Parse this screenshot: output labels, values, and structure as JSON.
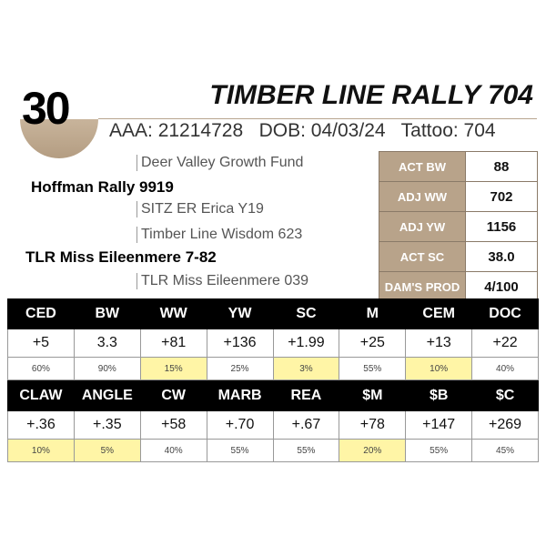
{
  "lot": "30",
  "title": "TIMBER LINE RALLY 704",
  "ids": "AAA: 21214728   DOB: 04/03/24   Tattoo: 704",
  "pedigree": {
    "sire_sire": "Deer Valley Growth Fund",
    "sire": "Hoffman Rally 9919",
    "sire_dam": "SITZ ER Erica Y19",
    "dam_sire": "Timber Line Wisdom 623",
    "dam": "TLR Miss Eileenmere 7-82",
    "dam_dam": "TLR Miss Eileenmere 039"
  },
  "performance": [
    {
      "label": "ACT BW",
      "value": "88"
    },
    {
      "label": "ADJ WW",
      "value": "702"
    },
    {
      "label": "ADJ YW",
      "value": "1156"
    },
    {
      "label": "ACT SC",
      "value": "38.0"
    },
    {
      "label": "DAM'S PROD",
      "value": "4/100"
    }
  ],
  "highlight_color": "#fff5a6",
  "epd1": [
    {
      "h": "CED",
      "v": "+5",
      "p": "60%",
      "hl": false
    },
    {
      "h": "BW",
      "v": "3.3",
      "p": "90%",
      "hl": false
    },
    {
      "h": "WW",
      "v": "+81",
      "p": "15%",
      "hl": true
    },
    {
      "h": "YW",
      "v": "+136",
      "p": "25%",
      "hl": false
    },
    {
      "h": "SC",
      "v": "+1.99",
      "p": "3%",
      "hl": true
    },
    {
      "h": "M",
      "v": "+25",
      "p": "55%",
      "hl": false
    },
    {
      "h": "CEM",
      "v": "+13",
      "p": "10%",
      "hl": true
    },
    {
      "h": "DOC",
      "v": "+22",
      "p": "40%",
      "hl": false
    }
  ],
  "epd2": [
    {
      "h": "CLAW",
      "v": "+.36",
      "p": "10%",
      "hl": true
    },
    {
      "h": "ANGLE",
      "v": "+.35",
      "p": "5%",
      "hl": true
    },
    {
      "h": "CW",
      "v": "+58",
      "p": "40%",
      "hl": false
    },
    {
      "h": "MARB",
      "v": "+.70",
      "p": "55%",
      "hl": false
    },
    {
      "h": "REA",
      "v": "+.67",
      "p": "55%",
      "hl": false
    },
    {
      "h": "$M",
      "v": "+78",
      "p": "20%",
      "hl": true
    },
    {
      "h": "$B",
      "v": "+147",
      "p": "55%",
      "hl": false
    },
    {
      "h": "$C",
      "v": "+269",
      "p": "45%",
      "hl": false
    }
  ]
}
